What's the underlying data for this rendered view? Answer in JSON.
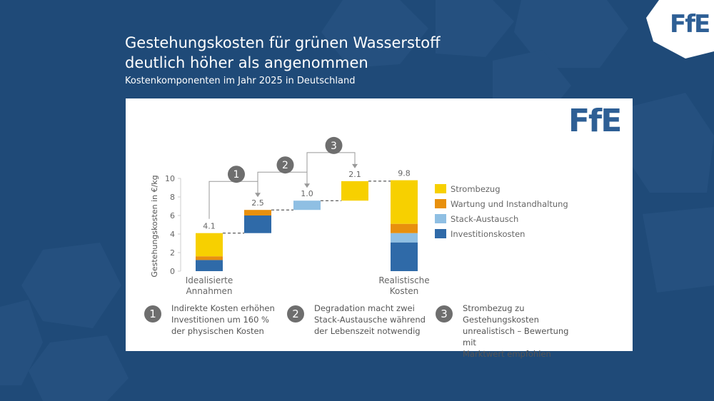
{
  "header": {
    "title_line1": "Gestehungskosten für grünen Wasserstoff",
    "title_line2": "deutlich höher als angenommen",
    "subtitle": "Kostenkomponenten im Jahr 2025 in Deutschland"
  },
  "brand": {
    "logo_text": "FfE"
  },
  "colors": {
    "background": "#1f4a78",
    "strombezug": "#f7d000",
    "wartung": "#e8900d",
    "stack": "#8fbfe3",
    "investition": "#2f6aa8",
    "badge": "#6e6e6e"
  },
  "chart_data": {
    "type": "bar",
    "subtype": "waterfall",
    "ylabel": "Gestehungskosten in €/kg",
    "ylim": [
      0,
      10
    ],
    "yticks": [
      "0",
      "2",
      "4",
      "6",
      "8",
      "10"
    ],
    "categories": [
      "Idealisierte Annahmen",
      "",
      "",
      "",
      "Realistische Kosten"
    ],
    "category_labels": [
      [
        "Idealisierte",
        "Annahmen"
      ],
      [
        "Realistische",
        "Kosten"
      ]
    ],
    "legend": {
      "placement": "right",
      "items": [
        "Strombezug",
        "Wartung und Instandhaltung",
        "Stack-Austausch",
        "Investitionskosten"
      ]
    },
    "bars": [
      {
        "label": "4.1",
        "kind": "total",
        "base": 0,
        "segments": [
          {
            "series": "Investitionskosten",
            "value": 1.2
          },
          {
            "series": "Wartung und Instandhaltung",
            "value": 0.4
          },
          {
            "series": "Strombezug",
            "value": 2.5
          }
        ]
      },
      {
        "label": "2.5",
        "kind": "step",
        "base": 4.1,
        "marker": "1",
        "segments": [
          {
            "series": "Investitionskosten",
            "value": 1.9
          },
          {
            "series": "Wartung und Instandhaltung",
            "value": 0.6
          }
        ]
      },
      {
        "label": "1.0",
        "kind": "step",
        "base": 6.6,
        "marker": "2",
        "segments": [
          {
            "series": "Stack-Austausch",
            "value": 1.0
          }
        ]
      },
      {
        "label": "2.1",
        "kind": "step",
        "base": 7.6,
        "marker": "3",
        "segments": [
          {
            "series": "Strombezug",
            "value": 2.1
          }
        ]
      },
      {
        "label": "9.8",
        "kind": "total",
        "base": 0,
        "segments": [
          {
            "series": "Investitionskosten",
            "value": 3.1
          },
          {
            "series": "Stack-Austausch",
            "value": 1.0
          },
          {
            "series": "Wartung und Instandhaltung",
            "value": 1.0
          },
          {
            "series": "Strombezug",
            "value": 4.7
          }
        ]
      }
    ]
  },
  "notes": [
    {
      "number": "1",
      "lines": [
        "Indirekte Kosten erhöhen",
        "Investitionen um 160 %",
        "der physischen Kosten"
      ]
    },
    {
      "number": "2",
      "lines": [
        "Degradation macht zwei",
        "Stack-Austausche während",
        "der Lebenszeit notwendig"
      ]
    },
    {
      "number": "3",
      "lines": [
        "Strombezug zu Gestehungskosten",
        "unrealistisch – Bewertung mit",
        "Marktwert empfohlen"
      ]
    }
  ]
}
